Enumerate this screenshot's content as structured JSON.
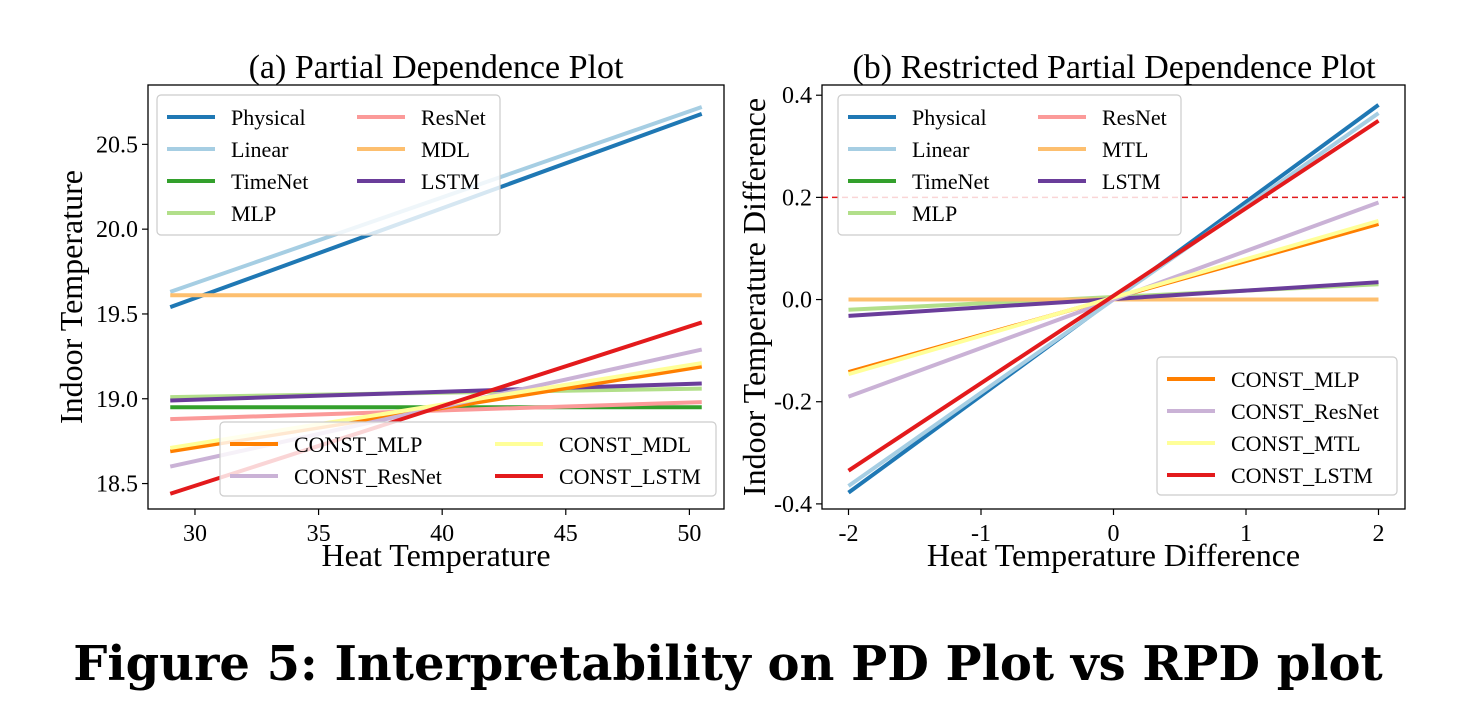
{
  "caption": "Figure 5: Interpretability on PD Plot vs RPD plot",
  "series_styles": {
    "Physical": "#1f78b4",
    "Linear": "#a6cee3",
    "TimeNet": "#33a02c",
    "MLP": "#b2df8a",
    "ResNet": "#fb9a99",
    "MDL": "#fdbf6f",
    "MTL": "#fdbf6f",
    "LSTM": "#6a3d9a",
    "CONST_MLP": "#ff7f00",
    "CONST_ResNet": "#cab2d6",
    "CONST_MDL": "#ffff99",
    "CONST_MTL": "#ffff99",
    "CONST_LSTM": "#e31a1c"
  },
  "chart_data": [
    {
      "type": "line",
      "title": "(a) Partial Dependence Plot",
      "xlabel": "Heat Temperature",
      "ylabel": "Indoor Temperature",
      "xlim": [
        28.1,
        51.4
      ],
      "ylim": [
        18.35,
        20.85
      ],
      "xticks": [
        30,
        35,
        40,
        45,
        50
      ],
      "xtick_labels": [
        "30",
        "35",
        "40",
        "45",
        "50"
      ],
      "yticks": [
        18.5,
        19.0,
        19.5,
        20.0,
        20.5
      ],
      "ytick_labels": [
        "18.5",
        "19.0",
        "19.5",
        "20.0",
        "20.5"
      ],
      "x": [
        29,
        50.5
      ],
      "series": [
        {
          "name": "Physical",
          "values": [
            19.54,
            20.68
          ]
        },
        {
          "name": "Linear",
          "values": [
            19.63,
            20.72
          ]
        },
        {
          "name": "TimeNet",
          "values": [
            18.95,
            18.95
          ]
        },
        {
          "name": "MLP",
          "values": [
            19.01,
            19.06
          ]
        },
        {
          "name": "ResNet",
          "values": [
            18.88,
            18.98
          ]
        },
        {
          "name": "MDL",
          "values": [
            19.61,
            19.61
          ]
        },
        {
          "name": "LSTM",
          "values": [
            18.99,
            19.09
          ]
        },
        {
          "name": "CONST_MLP",
          "values": [
            18.69,
            19.19
          ]
        },
        {
          "name": "CONST_ResNet",
          "values": [
            18.6,
            19.29
          ]
        },
        {
          "name": "CONST_MDL",
          "values": [
            18.71,
            19.21
          ]
        },
        {
          "name": "CONST_LSTM",
          "values": [
            18.44,
            19.45
          ]
        }
      ],
      "legends": [
        {
          "position": "upper-left",
          "columns": [
            [
              "Physical",
              "Linear",
              "TimeNet",
              "MLP"
            ],
            [
              "ResNet",
              "MDL",
              "LSTM"
            ]
          ]
        },
        {
          "position": "lower-right",
          "columns": [
            [
              "CONST_MLP",
              "CONST_ResNet"
            ],
            [
              "CONST_MDL",
              "CONST_LSTM"
            ]
          ]
        }
      ]
    },
    {
      "type": "line",
      "title": "(b) Restricted Partial Dependence Plot",
      "xlabel": "Heat Temperature Difference",
      "ylabel": "Indoor Temperature Difference",
      "xlim": [
        -2.2,
        2.2
      ],
      "ylim": [
        -0.41,
        0.42
      ],
      "xticks": [
        -2,
        -1,
        0,
        1,
        2
      ],
      "xtick_labels": [
        "-2",
        "-1",
        "0",
        "1",
        "2"
      ],
      "yticks": [
        -0.4,
        -0.2,
        0.0,
        0.2,
        0.4
      ],
      "ytick_labels": [
        "-0.4",
        "-0.2",
        "0.0",
        "0.2",
        "0.4"
      ],
      "reference_line": {
        "y": 0.2,
        "style": "dashed",
        "color": "#e31a1c"
      },
      "x": [
        -2,
        2
      ],
      "series": [
        {
          "name": "Physical",
          "values": [
            -0.378,
            0.381
          ]
        },
        {
          "name": "Linear",
          "values": [
            -0.365,
            0.365
          ]
        },
        {
          "name": "TimeNet",
          "values": [
            0.0,
            0.0
          ]
        },
        {
          "name": "MLP",
          "values": [
            -0.02,
            0.03
          ]
        },
        {
          "name": "ResNet",
          "values": [
            0.0,
            0.0
          ]
        },
        {
          "name": "MTL",
          "values": [
            0.0,
            0.0
          ]
        },
        {
          "name": "LSTM",
          "values": [
            -0.032,
            0.034
          ]
        },
        {
          "name": "CONST_MLP",
          "values": [
            -0.142,
            0.148
          ]
        },
        {
          "name": "CONST_ResNet",
          "values": [
            -0.19,
            0.19
          ]
        },
        {
          "name": "CONST_MTL",
          "values": [
            -0.146,
            0.154
          ]
        },
        {
          "name": "CONST_LSTM",
          "values": [
            -0.335,
            0.35
          ]
        }
      ],
      "legends": [
        {
          "position": "upper-left",
          "columns": [
            [
              "Physical",
              "Linear",
              "TimeNet",
              "MLP"
            ],
            [
              "ResNet",
              "MTL",
              "LSTM"
            ]
          ]
        },
        {
          "position": "lower-right",
          "columns": [
            [
              "CONST_MLP",
              "CONST_ResNet",
              "CONST_MTL",
              "CONST_LSTM"
            ]
          ]
        }
      ]
    }
  ]
}
